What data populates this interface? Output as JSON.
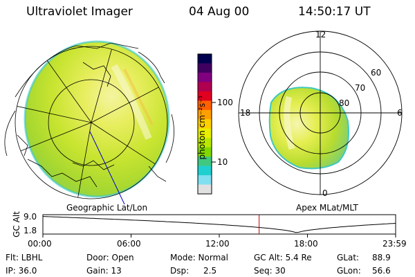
{
  "header": {
    "instrument": "Ultraviolet Imager",
    "date": "04 Aug 00",
    "time": "14:50:17 UT"
  },
  "colorbar": {
    "unit_label": "photon cm⁻²s⁻¹",
    "ticks": [
      "100",
      "10"
    ],
    "colors": [
      "#000050",
      "#400060",
      "#800080",
      "#b00050",
      "#e00020",
      "#ff6000",
      "#ffa000",
      "#ffd000",
      "#e8f000",
      "#b8e800",
      "#80d800",
      "#40c880",
      "#20d0d0",
      "#80e0f0",
      "#e0e0e0"
    ]
  },
  "geo_map": {
    "label": "Geographic Lat/Lon"
  },
  "polar_map": {
    "label": "Apex MLat/MLT",
    "mlt_labels": {
      "top": "12",
      "left": "18",
      "right": "6",
      "bottom": "0"
    },
    "lat_labels": [
      "60",
      "70",
      "80"
    ]
  },
  "altitude_plot": {
    "ylabel": "GC Alt",
    "yticks": [
      "9.0",
      "1.8"
    ],
    "xticks": [
      "00:00",
      "06:00",
      "12:00",
      "18:00",
      "23:59"
    ],
    "current_time_fraction": 0.613,
    "marker_color": "#c00000"
  },
  "status": {
    "filter": "Flt: LBHL",
    "ip": "IP: 36.0",
    "door": "Door: Open",
    "gain": "Gain: 13",
    "mode": "Mode: Normal",
    "dsp_label": "Dsp:",
    "dsp_value": "2.5",
    "gc_alt": "GC Alt: 5.4 Re",
    "seq": "Seq: 30",
    "glat_label": "GLat:",
    "glat_value": "88.9",
    "glon_label": "GLon:",
    "glon_value": "56.6"
  }
}
